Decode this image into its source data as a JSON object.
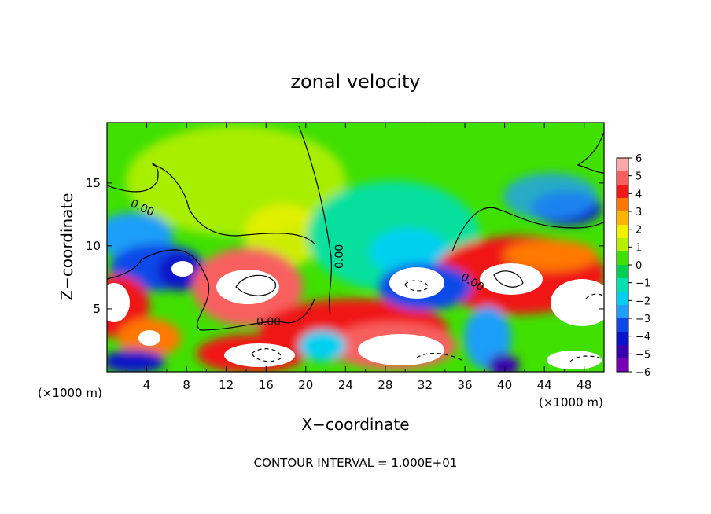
{
  "chart_data": {
    "type": "heatmap",
    "title": "zonal velocity",
    "xlabel": "X−coordinate",
    "ylabel": "Z−coordinate",
    "x_unit_left": "(×1000 m)",
    "x_unit_right": "(×1000 m)",
    "footer": "CONTOUR INTERVAL = 1.000E+01",
    "xlim": [
      0,
      50
    ],
    "ylim": [
      0,
      19.8
    ],
    "x_ticks": [
      4,
      8,
      12,
      16,
      20,
      24,
      28,
      32,
      36,
      40,
      44,
      48
    ],
    "y_ticks": [
      5,
      10,
      15
    ],
    "colorbar": {
      "range": [
        -6,
        6
      ],
      "ticks": [
        "6",
        "5",
        "4",
        "3",
        "2",
        "1",
        "0",
        "−1",
        "−2",
        "−3",
        "−4",
        "−5",
        "−6"
      ],
      "colors": [
        "#fca8a8",
        "#f86060",
        "#f01818",
        "#ff7800",
        "#ffb400",
        "#f0f000",
        "#b4f000",
        "#40e000",
        "#00d050",
        "#00e0b0",
        "#00d0f0",
        "#1f9ff8",
        "#1048e8",
        "#0a14c8",
        "#3a00b0",
        "#7800b4"
      ]
    },
    "contour_labels": [
      "0.00",
      "0.00",
      "0.00",
      "0.00"
    ]
  }
}
